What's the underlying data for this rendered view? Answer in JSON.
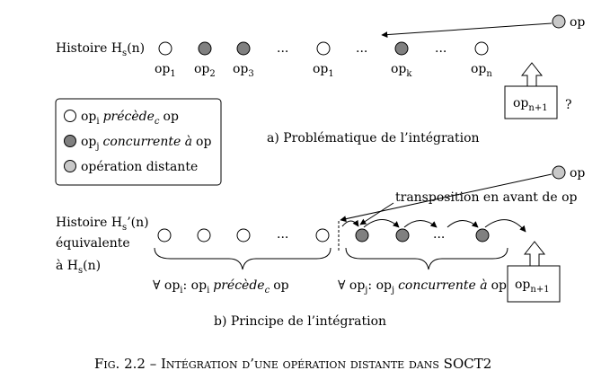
{
  "colors": {
    "white": "#ffffff",
    "dark": "#808080",
    "light": "#c8c8c8",
    "stroke": "#000000"
  },
  "top": {
    "histoire_label": "Histoire H",
    "histoire_sub": "s",
    "histoire_tail": "(n)",
    "ops": [
      {
        "label": "op",
        "sub": "1",
        "kind": "white"
      },
      {
        "label": "op",
        "sub": "2",
        "kind": "dark"
      },
      {
        "label": "op",
        "sub": "3",
        "kind": "dark"
      },
      {
        "label": "...",
        "sub": "",
        "kind": "dots"
      },
      {
        "label": "op",
        "sub": "1",
        "kind": "white"
      },
      {
        "label": "...",
        "sub": "",
        "kind": "dots"
      },
      {
        "label": "op",
        "sub": "k",
        "kind": "dark"
      },
      {
        "label": "...",
        "sub": "",
        "kind": "dots"
      },
      {
        "label": "op",
        "sub": "n",
        "kind": "white"
      }
    ],
    "remote_op": "op",
    "box_label": "op",
    "box_sub": "n+1",
    "question": "?",
    "caption": "a) Problématique de l’intégration"
  },
  "legend": {
    "item1_op": "op",
    "item1_sub": "i",
    "item1_text": "précède",
    "item1_sub2": "c",
    "item1_tail": "op",
    "item2_op": "op",
    "item2_sub": "j",
    "item2_text": "concurrente à",
    "item2_tail": "op",
    "item3_text": "opération distante"
  },
  "bottom": {
    "histoire_line1_a": "Histoire H",
    "histoire_line1_sub": "s",
    "histoire_line1_b": "’(n)",
    "histoire_line2": "équivalente",
    "histoire_line3_a": "à  H",
    "histoire_line3_sub": "s",
    "histoire_line3_b": "(n)",
    "dots": "...",
    "remote_op": "op",
    "transposition": "transposition en avant de op",
    "brace1_a": "∀ op",
    "brace1_sub": "i",
    "brace1_b": ": op",
    "brace1_sub2": "i",
    "brace1_c": "précède",
    "brace1_sub3": "c",
    "brace1_d": "op",
    "brace2_a": "∀ op",
    "brace2_sub": "j",
    "brace2_b": ": op",
    "brace2_sub2": "j",
    "brace2_c": "concurrente à",
    "brace2_d": "op",
    "box_label": "op",
    "box_sub": "n+1",
    "caption": "b) Principe de l’intégration"
  },
  "figure_caption": "Fig. 2.2 – Intégration d’une opération distante dans SOCT2"
}
